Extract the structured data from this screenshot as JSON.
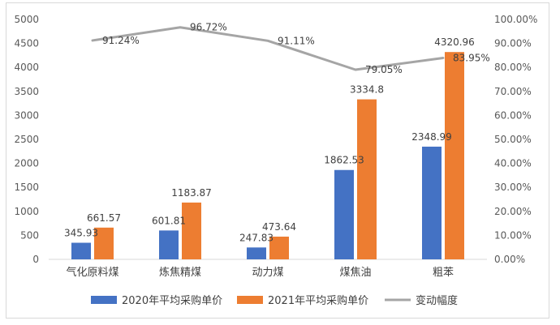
{
  "chart_data": {
    "type": "bar",
    "categories": [
      "气化原料煤",
      "炼焦精煤",
      "动力煤",
      "煤焦油",
      "粗苯"
    ],
    "series": [
      {
        "name": "2020年平均采购单价",
        "type": "bar",
        "axis": "left",
        "color": "#4472c4",
        "values": [
          345.93,
          601.81,
          247.83,
          1862.53,
          2348.99
        ],
        "labels": [
          "345.93",
          "601.81",
          "247.83",
          "1862.53",
          "2348.99"
        ]
      },
      {
        "name": "2021年平均采购单价",
        "type": "bar",
        "axis": "left",
        "color": "#ed7d31",
        "values": [
          661.57,
          1183.87,
          473.64,
          3334.8,
          4320.96
        ],
        "labels": [
          "661.57",
          "1183.87",
          "473.64",
          "3334.8",
          "4320.96"
        ]
      },
      {
        "name": "变动幅度",
        "type": "line",
        "axis": "right",
        "color": "#a5a5a5",
        "values": [
          91.24,
          96.72,
          91.11,
          79.05,
          83.95
        ],
        "labels": [
          "91.24%",
          "96.72%",
          "91.11%",
          "79.05%",
          "83.95%"
        ]
      }
    ],
    "y_left": {
      "min": 0,
      "max": 5000,
      "step": 500,
      "ticks": [
        "0",
        "500",
        "1000",
        "1500",
        "2000",
        "2500",
        "3000",
        "3500",
        "4000",
        "4500",
        "5000"
      ]
    },
    "y_right": {
      "min": 0,
      "max": 100,
      "step": 10,
      "ticks": [
        "0.00%",
        "10.00%",
        "20.00%",
        "30.00%",
        "40.00%",
        "50.00%",
        "60.00%",
        "70.00%",
        "80.00%",
        "90.00%",
        "100.00%"
      ]
    },
    "legend": {
      "position": "bottom"
    },
    "grid": false,
    "title": ""
  }
}
